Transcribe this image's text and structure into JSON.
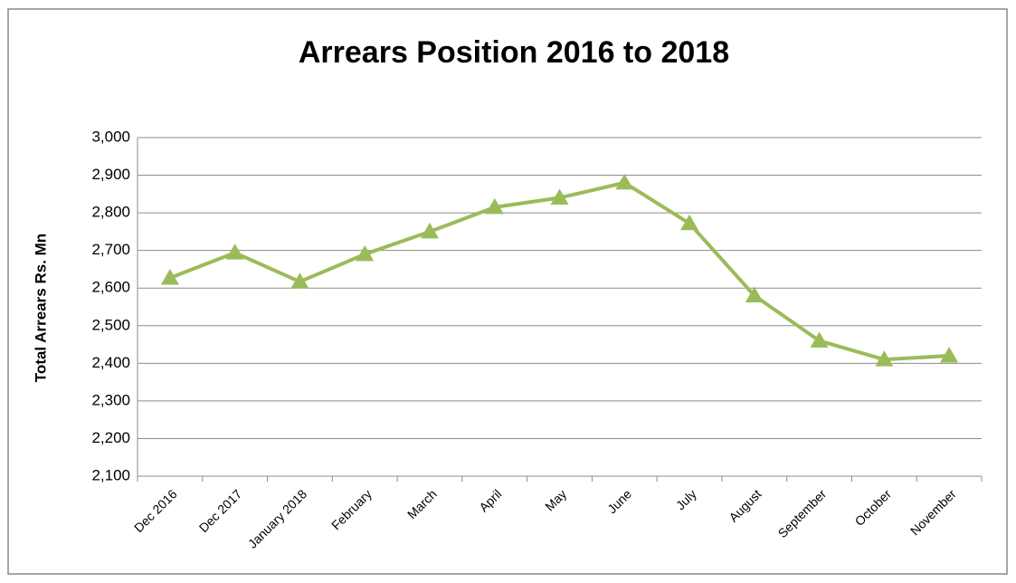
{
  "chart_data": {
    "type": "line",
    "title": "Arrears Position 2016 to 2018",
    "y_label": "Total Arrears Rs. Mn",
    "categories": [
      "Dec 2016",
      "Dec 2017",
      "January 2018",
      "February",
      "March",
      "April",
      "May",
      "June",
      "July",
      "August",
      "September",
      "October",
      "November"
    ],
    "series": [
      {
        "name": "Total Arrears",
        "color": "#9bbb59",
        "values": [
          2627,
          2694,
          2617,
          2690,
          2750,
          2815,
          2840,
          2880,
          2772,
          2580,
          2460,
          2410,
          2420
        ]
      }
    ],
    "ylim": [
      2100,
      3000
    ],
    "yticks": [
      {
        "value": 2100,
        "label": "2,100"
      },
      {
        "value": 2200,
        "label": "2,200"
      },
      {
        "value": 2300,
        "label": "2,300"
      },
      {
        "value": 2400,
        "label": "2,400"
      },
      {
        "value": 2500,
        "label": "2,500"
      },
      {
        "value": 2600,
        "label": "2,600"
      },
      {
        "value": 2700,
        "label": "2,700"
      },
      {
        "value": 2800,
        "label": "2,800"
      },
      {
        "value": 2900,
        "label": "2,900"
      },
      {
        "value": 3000,
        "label": "3,000"
      }
    ],
    "grid": true,
    "marker": "triangle"
  }
}
